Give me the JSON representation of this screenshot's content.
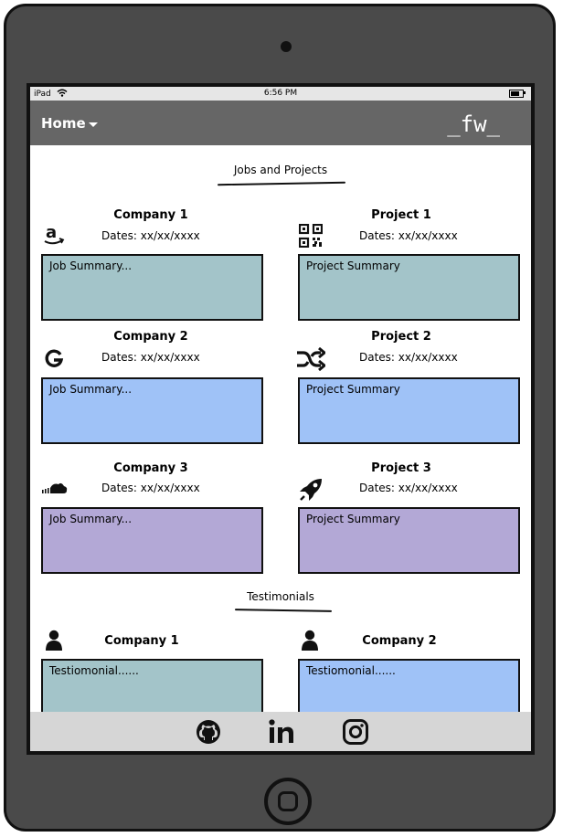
{
  "status": {
    "device": "iPad",
    "time": "6:56 PM"
  },
  "nav": {
    "home_label": "Home",
    "logo": "_fw_"
  },
  "jobs_section": {
    "title": "Jobs and Projects"
  },
  "companies": [
    {
      "name": "Company 1",
      "dates": "Dates: xx/xx/xxxx",
      "summary": "Job Summary...",
      "icon": "amazon-icon"
    },
    {
      "name": "Company 2",
      "dates": "Dates: xx/xx/xxxx",
      "summary": "Job Summary...",
      "icon": "google-icon"
    },
    {
      "name": "Company 3",
      "dates": "Dates: xx/xx/xxxx",
      "summary": "Job Summary...",
      "icon": "soundcloud-icon"
    }
  ],
  "projects": [
    {
      "name": "Project 1",
      "dates": "Dates: xx/xx/xxxx",
      "summary": "Project Summary",
      "icon": "qrcode-icon"
    },
    {
      "name": "Project 2",
      "dates": "Dates: xx/xx/xxxx",
      "summary": "Project Summary",
      "icon": "shuffle-icon"
    },
    {
      "name": "Project 3",
      "dates": "Dates: xx/xx/xxxx",
      "summary": "Project Summary",
      "icon": "rocket-icon"
    }
  ],
  "testimonials_section": {
    "title": "Testimonials"
  },
  "testimonials": [
    {
      "company": "Company 1",
      "text": "Testiomonial......",
      "icon": "user-icon"
    },
    {
      "company": "Company 2",
      "text": "Testiomonial......",
      "icon": "user-icon"
    }
  ],
  "footer": {
    "icons": [
      "github-icon",
      "linkedin-icon",
      "instagram-icon"
    ]
  },
  "colors": {
    "teal": "#a3c4c9",
    "blue": "#9fc2f7",
    "purple": "#b3a8d6",
    "navbar": "#666666",
    "footer": "#d6d6d6"
  }
}
